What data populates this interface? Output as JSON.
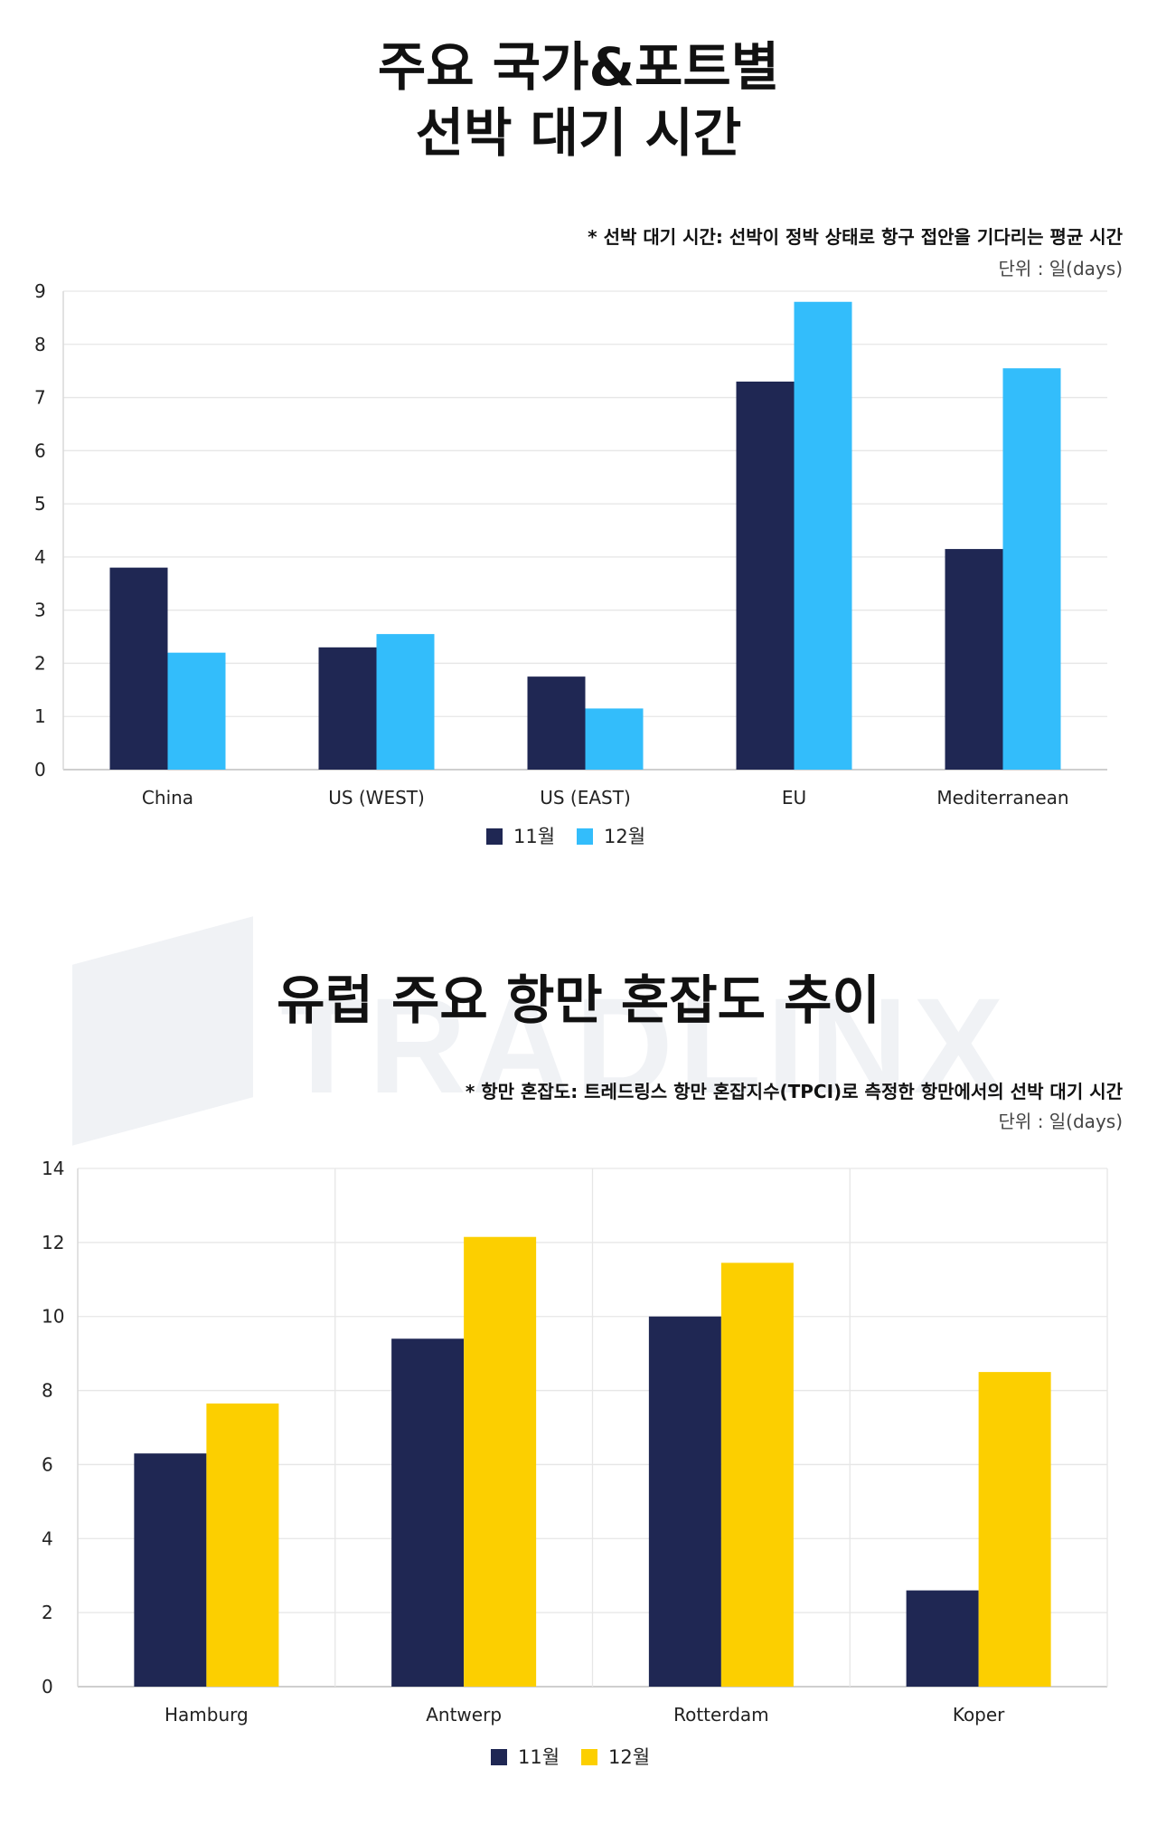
{
  "section1": {
    "title_line1": "주요 국가&포트별",
    "title_line2": "선박 대기 시간",
    "note": "* 선박 대기 시간: 선박이 정박 상태로 항구 접안을 기다리는 평균 시간",
    "unit": "단위 : 일(days)"
  },
  "section2": {
    "title": "유럽 주요 항만 혼잡도 추이",
    "note": "* 항만 혼잡도: 트레드링스 항만 혼잡지수(TPCI)로 측정한 항만에서의 선박 대기 시간",
    "unit": "단위 : 일(days)"
  },
  "watermark": {
    "text": "TRADLINX"
  },
  "chart_data": [
    {
      "type": "bar",
      "categories": [
        "China",
        "US (WEST)",
        "US (EAST)",
        "EU",
        "Mediterranean"
      ],
      "series": [
        {
          "name": "11월",
          "color": "#1f2753",
          "values": [
            3.8,
            2.3,
            1.75,
            7.3,
            4.15
          ]
        },
        {
          "name": "12월",
          "color": "#33bdfb",
          "values": [
            2.2,
            2.55,
            1.15,
            8.8,
            7.55
          ]
        }
      ],
      "ylim": [
        0,
        9
      ],
      "yticks": [
        0,
        1,
        2,
        3,
        4,
        5,
        6,
        7,
        8,
        9
      ],
      "grid": "horizontal",
      "legend": "bottom-center"
    },
    {
      "type": "bar",
      "categories": [
        "Hamburg",
        "Antwerp",
        "Rotterdam",
        "Koper"
      ],
      "series": [
        {
          "name": "11월",
          "color": "#1f2753",
          "values": [
            6.3,
            9.4,
            10.0,
            2.6
          ]
        },
        {
          "name": "12월",
          "color": "#fccf00",
          "values": [
            7.65,
            12.15,
            11.45,
            8.5
          ]
        }
      ],
      "ylim": [
        0,
        14
      ],
      "yticks": [
        0,
        2,
        4,
        6,
        8,
        10,
        12,
        14
      ],
      "grid": "horizontal and vertical",
      "legend": "bottom-center"
    }
  ]
}
